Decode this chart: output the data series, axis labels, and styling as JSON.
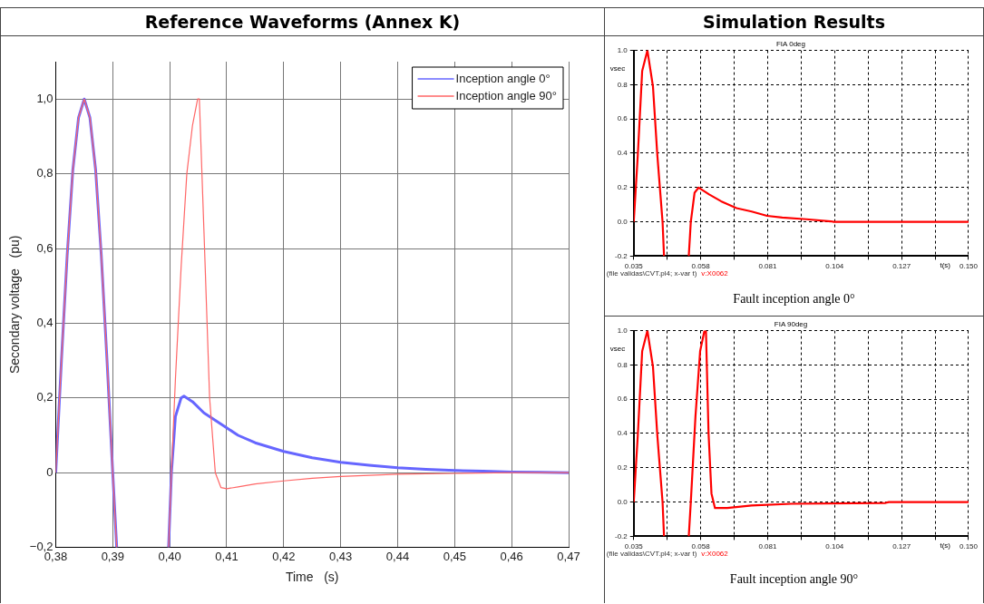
{
  "chart_data": [
    {
      "type": "line",
      "title": "Reference Waveforms (Annex K)",
      "xlabel": "Time   (s)",
      "ylabel": "Secondary voltage   (pu)",
      "xlim": [
        0.38,
        0.47
      ],
      "ylim": [
        -0.2,
        1.1
      ],
      "xticks": [
        {
          "value": 0.38,
          "label": "0,38"
        },
        {
          "value": 0.39,
          "label": "0,39"
        },
        {
          "value": 0.4,
          "label": "0,40"
        },
        {
          "value": 0.41,
          "label": "0,41"
        },
        {
          "value": 0.42,
          "label": "0,42"
        },
        {
          "value": 0.43,
          "label": "0,43"
        },
        {
          "value": 0.44,
          "label": "0,44"
        },
        {
          "value": 0.45,
          "label": "0,45"
        },
        {
          "value": 0.46,
          "label": "0,46"
        },
        {
          "value": 0.47,
          "label": "0,47"
        }
      ],
      "yticks": [
        {
          "value": -0.2,
          "label": "−0,2"
        },
        0,
        {
          "value": 0.2,
          "label": "0,2"
        },
        {
          "value": 0.4,
          "label": "0,4"
        },
        {
          "value": 0.6,
          "label": "0,6"
        },
        {
          "value": 0.8,
          "label": "0,8"
        },
        {
          "value": 1,
          "label": "1,0"
        }
      ],
      "grid": true,
      "legend": "top right",
      "series": [
        {
          "name": "Inception angle 0°",
          "color": "#6666ff",
          "x": [
            0.38,
            0.381,
            0.382,
            0.383,
            0.384,
            0.385,
            0.386,
            0.387,
            0.388,
            0.389,
            0.39,
            0.3907,
            0.395,
            0.3998,
            0.4003,
            0.401,
            0.402,
            0.4025,
            0.404,
            0.406,
            0.408,
            0.41,
            0.412,
            0.415,
            0.42,
            0.425,
            0.43,
            0.435,
            0.44,
            0.445,
            0.45,
            0.455,
            0.46,
            0.465,
            0.47
          ],
          "values": [
            0,
            0.3,
            0.58,
            0.81,
            0.95,
            1,
            0.95,
            0.81,
            0.58,
            0.3,
            0,
            -0.2,
            null,
            -0.2,
            0,
            0.15,
            0.2,
            0.205,
            0.19,
            0.16,
            0.14,
            0.12,
            0.1,
            0.08,
            0.057,
            0.04,
            0.028,
            0.02,
            0.013,
            0.009,
            0.006,
            0.004,
            0.002,
            0.001,
            0
          ]
        },
        {
          "name": "Inception angle 90°",
          "color": "#ff6666",
          "x": [
            0.38,
            0.381,
            0.382,
            0.383,
            0.384,
            0.385,
            0.386,
            0.387,
            0.388,
            0.389,
            0.39,
            0.3907,
            0.395,
            0.3998,
            0.4003,
            0.401,
            0.402,
            0.403,
            0.404,
            0.4049,
            0.4052,
            0.406,
            0.407,
            0.408,
            0.409,
            0.41,
            0.412,
            0.415,
            0.42,
            0.425,
            0.43,
            0.44,
            0.45,
            0.46,
            0.47
          ],
          "values": [
            0,
            0.3,
            0.58,
            0.81,
            0.95,
            1,
            0.95,
            0.81,
            0.58,
            0.3,
            0,
            -0.2,
            null,
            -0.2,
            0,
            0.25,
            0.55,
            0.8,
            0.93,
            1,
            1,
            0.65,
            0.2,
            0,
            -0.04,
            -0.043,
            -0.038,
            -0.03,
            -0.022,
            -0.015,
            -0.01,
            -0.004,
            -0.002,
            0,
            0
          ]
        }
      ]
    },
    {
      "type": "line",
      "title": "Simulation Results",
      "subtitle": "FIA 0deg",
      "xlabel": "t(s)",
      "ylabel": "vsec",
      "xlim": [
        0.035,
        0.15
      ],
      "ylim": [
        -0.2,
        1
      ],
      "xticks": [
        0.035,
        {
          "value": 0.0465,
          "label": null
        },
        0.058,
        {
          "value": 0.0695,
          "label": null
        },
        0.081,
        {
          "value": 0.0925,
          "label": null
        },
        0.104,
        {
          "value": 0.1155,
          "label": null
        },
        0.127,
        {
          "value": 0.1385,
          "label": null
        },
        {
          "value": 0.15,
          "label": "0.150"
        }
      ],
      "yticks": [
        {
          "value": -0.2,
          "label": "-0.2"
        },
        {
          "value": 0,
          "label": "0.0"
        },
        0.2,
        0.4,
        0.6,
        0.8,
        {
          "value": 1,
          "label": "1.0"
        }
      ],
      "grid": true,
      "annotations": [
        "(file validas\\CVT.pl4; x-var t)",
        "v:X0062",
        "Fault inception angle 0°"
      ],
      "series": [
        {
          "color": "#ff0000",
          "x": [
            0.035,
            0.0364,
            0.0379,
            0.0397,
            0.0416,
            0.0431,
            0.0449,
            0.0454,
            0.05,
            0.0539,
            0.0546,
            0.0559,
            0.0573,
            0.0609,
            0.065,
            0.0703,
            0.0755,
            0.0808,
            0.086,
            0.0943,
            0.1027,
            0.1037,
            0.15
          ],
          "values": [
            0,
            0.39,
            0.88,
            1,
            0.79,
            0.39,
            0,
            -0.2,
            null,
            -0.2,
            0,
            0.17,
            0.2,
            0.16,
            0.12,
            0.08,
            0.06,
            0.035,
            0.025,
            0.015,
            0.003,
            0,
            0
          ]
        }
      ]
    },
    {
      "type": "line",
      "subtitle": "FIA 90deg",
      "xlabel": "t(s)",
      "ylabel": "vsec",
      "xlim": [
        0.035,
        0.15
      ],
      "ylim": [
        -0.2,
        1
      ],
      "xticks": [
        0.035,
        {
          "value": 0.0465,
          "label": null
        },
        0.058,
        {
          "value": 0.0695,
          "label": null
        },
        0.081,
        {
          "value": 0.0925,
          "label": null
        },
        0.104,
        {
          "value": 0.1155,
          "label": null
        },
        0.127,
        {
          "value": 0.1385,
          "label": null
        },
        {
          "value": 0.15,
          "label": "0.150"
        }
      ],
      "yticks": [
        {
          "value": -0.2,
          "label": "-0.2"
        },
        {
          "value": 0,
          "label": "0.0"
        },
        0.2,
        0.4,
        0.6,
        0.8,
        {
          "value": 1,
          "label": "1.0"
        }
      ],
      "grid": true,
      "annotations": [
        "(file validas\\CVT.pl4; x-var t)",
        "v:X0062",
        "Fault inception angle 90°"
      ],
      "series": [
        {
          "color": "#ff0000",
          "x": [
            0.035,
            0.0364,
            0.0379,
            0.0397,
            0.0416,
            0.0431,
            0.0449,
            0.0454,
            0.05,
            0.0539,
            0.0546,
            0.0562,
            0.0578,
            0.0593,
            0.0598,
            0.0607,
            0.0617,
            0.0629,
            0.0671,
            0.0755,
            0.0891,
            0.1215,
            0.1226,
            0.15
          ],
          "values": [
            0,
            0.39,
            0.88,
            1,
            0.79,
            0.39,
            0,
            -0.2,
            null,
            -0.2,
            0,
            0.5,
            0.88,
            1,
            1,
            0.4,
            0.05,
            -0.035,
            -0.035,
            -0.02,
            -0.01,
            -0.005,
            0,
            0
          ]
        }
      ]
    }
  ]
}
